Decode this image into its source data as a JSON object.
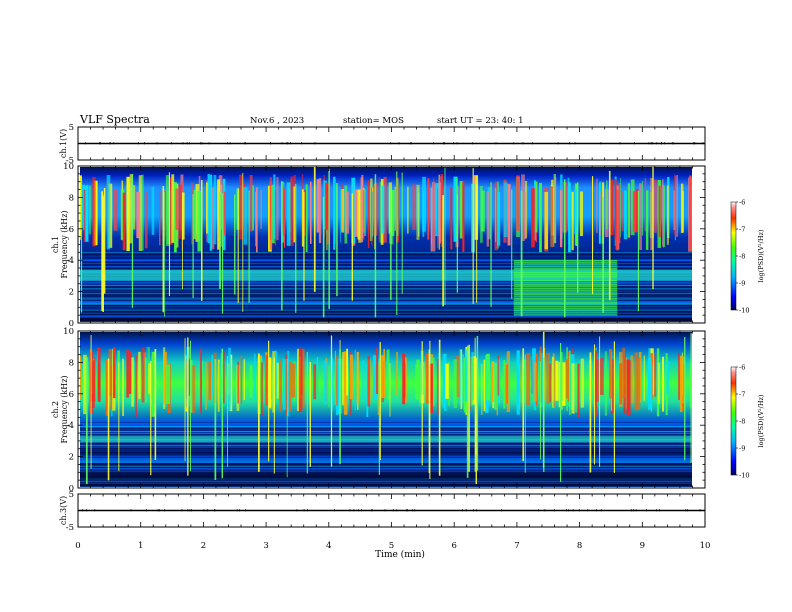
{
  "header": {
    "title": "VLF Spectra",
    "date": "Nov.6 , 2023",
    "station": "station= MOS",
    "start_ut": "start UT = 23: 40: 1"
  },
  "chart_data": [
    {
      "type": "line",
      "name": "ch1-waveform",
      "ylabel": "ch.1(V)",
      "ylim": [
        -5,
        5
      ],
      "yticks": [
        5,
        -5
      ],
      "xlim": [
        0,
        10
      ],
      "value": 0
    },
    {
      "type": "heatmap",
      "name": "ch1-spectrogram",
      "ylabel": "ch.1 Frequency (kHz)",
      "ylim": [
        0,
        10
      ],
      "yticks": [
        0,
        2,
        4,
        6,
        8,
        10
      ],
      "xlim": [
        0,
        9.8
      ],
      "colorbar": {
        "label": "log(PSD)(V²/Hz)",
        "ticks": [
          -6,
          -7,
          -8,
          -9,
          -10
        ],
        "range": [
          -10,
          -6
        ]
      },
      "features": {
        "sferic_band_khz": [
          4.5,
          9.5
        ],
        "hiss_band_khz": [
          2.7,
          3.4
        ],
        "enhanced_interval_min": [
          6.95,
          8.6
        ],
        "enhanced_band_khz": [
          0.5,
          4.0
        ]
      }
    },
    {
      "type": "heatmap",
      "name": "ch2-spectrogram",
      "ylabel": "ch.2 Frequency (kHz)",
      "ylim": [
        0,
        10
      ],
      "yticks": [
        0,
        2,
        4,
        6,
        8,
        10
      ],
      "xlim": [
        0,
        9.8
      ],
      "colorbar": {
        "label": "log(PSD)(V²/Hz)",
        "ticks": [
          -6,
          -7,
          -8,
          -9,
          -10
        ],
        "range": [
          -10,
          -6
        ]
      },
      "features": {
        "sferic_band_khz": [
          4.5,
          9.0
        ],
        "hiss_band_khz": [
          2.9,
          3.3
        ]
      }
    },
    {
      "type": "line",
      "name": "ch3-waveform",
      "ylabel": "ch.3(V)",
      "ylim": [
        -5,
        5
      ],
      "yticks": [
        5,
        -5
      ],
      "xlim": [
        0,
        10
      ],
      "value": 0
    }
  ],
  "xaxis": {
    "label": "Time (min)",
    "ticks": [
      0,
      1,
      2,
      3,
      4,
      5,
      6,
      7,
      8,
      9,
      10
    ],
    "range": [
      0,
      10
    ]
  }
}
